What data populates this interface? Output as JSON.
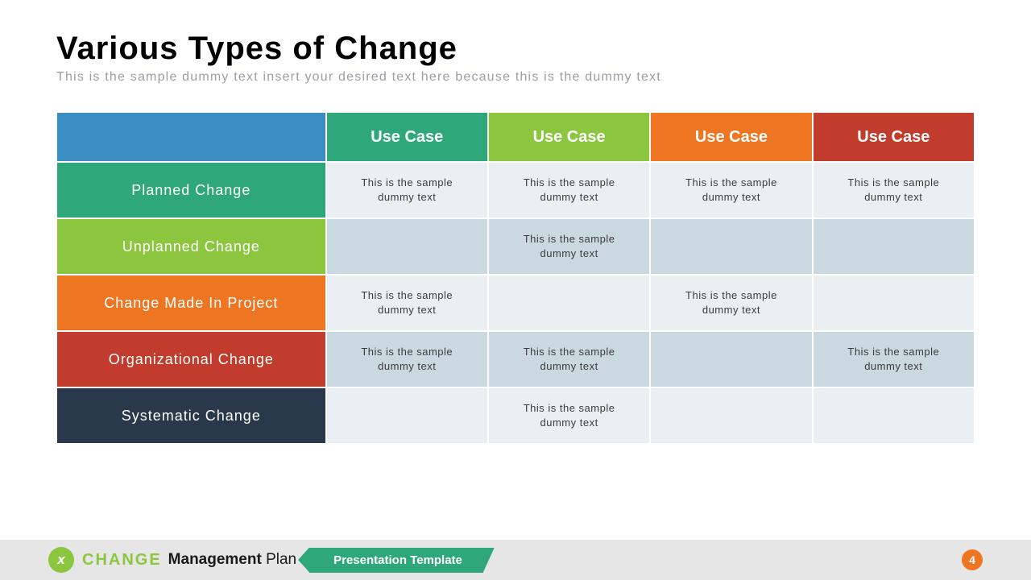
{
  "title": "Various Types of Change",
  "subtitle": "This is the sample dummy text insert your desired text here because this is the dummy text",
  "table": {
    "corner_bg": "#3a8ec2",
    "header_cells": [
      {
        "label": "Use Case",
        "bg": "#2ea77a"
      },
      {
        "label": "Use Case",
        "bg": "#8cc63f"
      },
      {
        "label": "Use Case",
        "bg": "#ee7521"
      },
      {
        "label": "Use Case",
        "bg": "#c13c2c"
      }
    ],
    "rows": [
      {
        "label": "Planned Change",
        "bg": "#2ea77a",
        "alt_bg": "#e9eff2",
        "cells": [
          "This is the sample\ndummy text",
          "This is the sample\ndummy text",
          "This is the sample\ndummy text",
          "This is the sample\ndummy text"
        ]
      },
      {
        "label": "Unplanned Change",
        "bg": "#8cc63f",
        "alt_bg": "#cad8e0",
        "cells": [
          "",
          "This is the sample\ndummy text",
          "",
          ""
        ]
      },
      {
        "label": "Change Made In Project",
        "bg": "#ee7521",
        "alt_bg": "#e9eff2",
        "cells": [
          "This is the sample\ndummy text",
          "",
          "This is the sample\ndummy text",
          ""
        ]
      },
      {
        "label": "Organizational Change",
        "bg": "#c13c2c",
        "alt_bg": "#cad8e0",
        "cells": [
          "This is the sample\ndummy text",
          "This is the sample\ndummy text",
          "",
          "This is the sample\ndummy text"
        ]
      },
      {
        "label": "Systematic Change",
        "bg": "#29384a",
        "alt_bg": "#e9eff2",
        "cells": [
          "",
          "This is the sample\ndummy text",
          "",
          ""
        ]
      }
    ]
  },
  "footer": {
    "logo_bg": "#8cc63f",
    "logo_char": "x",
    "brand1": "CHANGE",
    "brand2a": "Management",
    "brand2b": "Plan",
    "ribbon": "Presentation Template",
    "ribbon_bg": "#2ea77a",
    "page": "4",
    "page_bg": "#ee7521"
  }
}
